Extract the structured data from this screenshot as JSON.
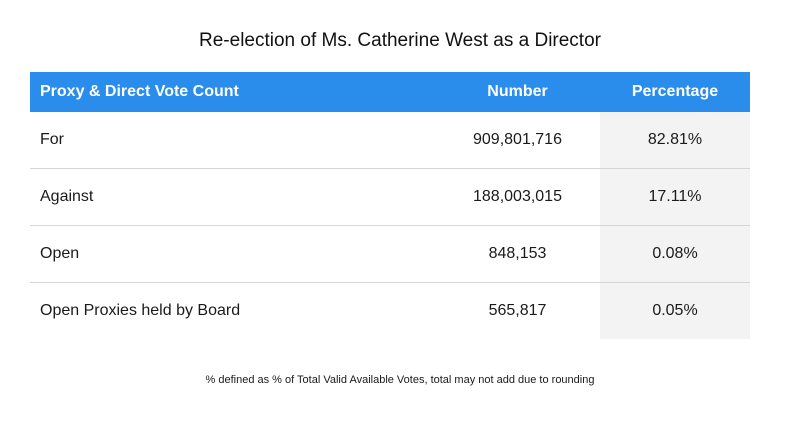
{
  "title": "Re-election of Ms. Catherine West as a Director",
  "table": {
    "headers": [
      "Proxy & Direct Vote Count",
      "Number",
      "Percentage"
    ],
    "rows": [
      {
        "label": "For",
        "number": "909,801,716",
        "percentage": "82.81%"
      },
      {
        "label": "Against",
        "number": "188,003,015",
        "percentage": "17.11%"
      },
      {
        "label": "Open",
        "number": "848,153",
        "percentage": "0.08%"
      },
      {
        "label": "Open Proxies held by Board",
        "number": "565,817",
        "percentage": "0.05%"
      }
    ]
  },
  "footnote": "% defined as % of Total Valid Available Votes, total may not add due to rounding",
  "colors": {
    "header_background": "#2a8ceb",
    "header_text": "#ffffff",
    "percentage_column_background": "#f3f3f3"
  }
}
